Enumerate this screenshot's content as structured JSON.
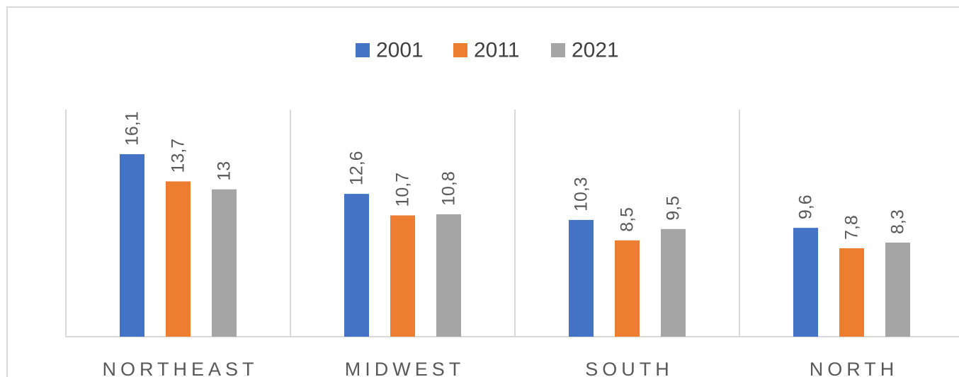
{
  "chart_data": {
    "type": "bar",
    "categories": [
      "NORTHEAST",
      "MIDWEST",
      "SOUTH",
      "NORTH"
    ],
    "series": [
      {
        "name": "2001",
        "color": "#4472c4",
        "values": [
          16.1,
          12.6,
          10.3,
          9.6
        ],
        "value_labels": [
          "16,1",
          "12,6",
          "10,3",
          "9,6"
        ]
      },
      {
        "name": "2011",
        "color": "#ed7d31",
        "values": [
          13.7,
          10.7,
          8.5,
          7.8
        ],
        "value_labels": [
          "13,7",
          "10,7",
          "8,5",
          "7,8"
        ]
      },
      {
        "name": "2021",
        "color": "#a5a5a5",
        "values": [
          13,
          10.8,
          9.5,
          8.3
        ],
        "value_labels": [
          "13",
          "10,8",
          "9,5",
          "8,3"
        ]
      }
    ],
    "legend": "top"
  }
}
